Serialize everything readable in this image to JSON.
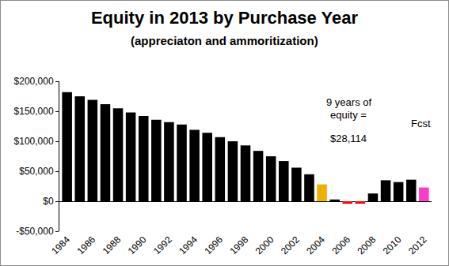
{
  "chart_data": {
    "type": "bar",
    "title": "Equity in 2013 by Purchase Year",
    "subtitle": "(appreciaton and ammoritization)",
    "categories": [
      "1984",
      null,
      "1986",
      null,
      "1988",
      null,
      "1990",
      null,
      "1992",
      null,
      "1994",
      null,
      "1996",
      null,
      "1998",
      null,
      "2000",
      null,
      "2002",
      null,
      "2004",
      null,
      "2006",
      null,
      "2008",
      null,
      "2010",
      null,
      "2012"
    ],
    "values": [
      182000,
      175000,
      169000,
      162000,
      155000,
      148000,
      142000,
      136000,
      132000,
      128000,
      119000,
      114000,
      107000,
      100000,
      93000,
      84000,
      75000,
      67000,
      56000,
      45000,
      28114,
      3000,
      -4000,
      -4000,
      13000,
      35000,
      32000,
      36000,
      23000
    ],
    "colors": [
      "#000000",
      "#000000",
      "#000000",
      "#000000",
      "#000000",
      "#000000",
      "#000000",
      "#000000",
      "#000000",
      "#000000",
      "#000000",
      "#000000",
      "#000000",
      "#000000",
      "#000000",
      "#000000",
      "#000000",
      "#000000",
      "#000000",
      "#000000",
      "#F0B000",
      "#000000",
      "#FF0000",
      "#FF0000",
      "#000000",
      "#000000",
      "#000000",
      "#000000",
      "#FF3CC8"
    ],
    "ylim": [
      -50000,
      200000
    ],
    "yticks": [
      {
        "value": -50000,
        "label": "-$50,000"
      },
      {
        "value": 0,
        "label": "$0"
      },
      {
        "value": 50000,
        "label": "$50,000"
      },
      {
        "value": 100000,
        "label": "$100,000"
      },
      {
        "value": 150000,
        "label": "$150,000"
      },
      {
        "value": 200000,
        "label": "$200,000"
      }
    ],
    "grid": false,
    "annotations": [
      "9 years of",
      "equity =",
      "$28,114",
      "Fcst"
    ]
  }
}
